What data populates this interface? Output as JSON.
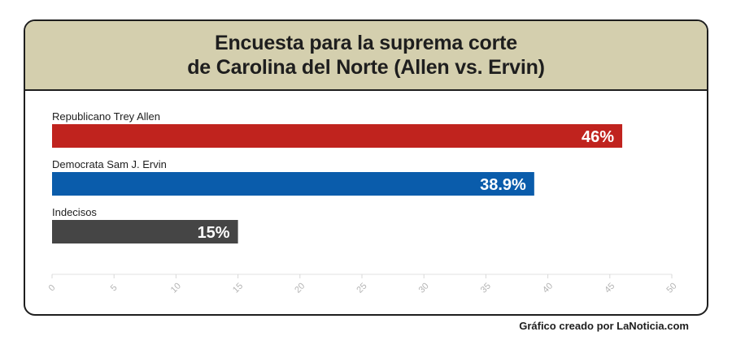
{
  "chart_data": {
    "type": "bar",
    "orientation": "horizontal",
    "title_lines": [
      "Encuesta para la suprema corte",
      "de Carolina del Norte (Allen vs. Ervin)"
    ],
    "categories": [
      "Republicano Trey Allen",
      "Democrata Sam J. Ervin",
      "Indecisos"
    ],
    "values": [
      46,
      38.9,
      15
    ],
    "value_labels": [
      "46%",
      "38.9%",
      "15%"
    ],
    "colors": [
      "#c0231e",
      "#0a5cab",
      "#454545"
    ],
    "xlim": [
      0,
      50
    ],
    "xticks": [
      0,
      5,
      10,
      15,
      20,
      25,
      30,
      35,
      40,
      45,
      50
    ],
    "grid": false,
    "legend": "none"
  },
  "footer": "Gráfico creado por LaNoticia.com"
}
